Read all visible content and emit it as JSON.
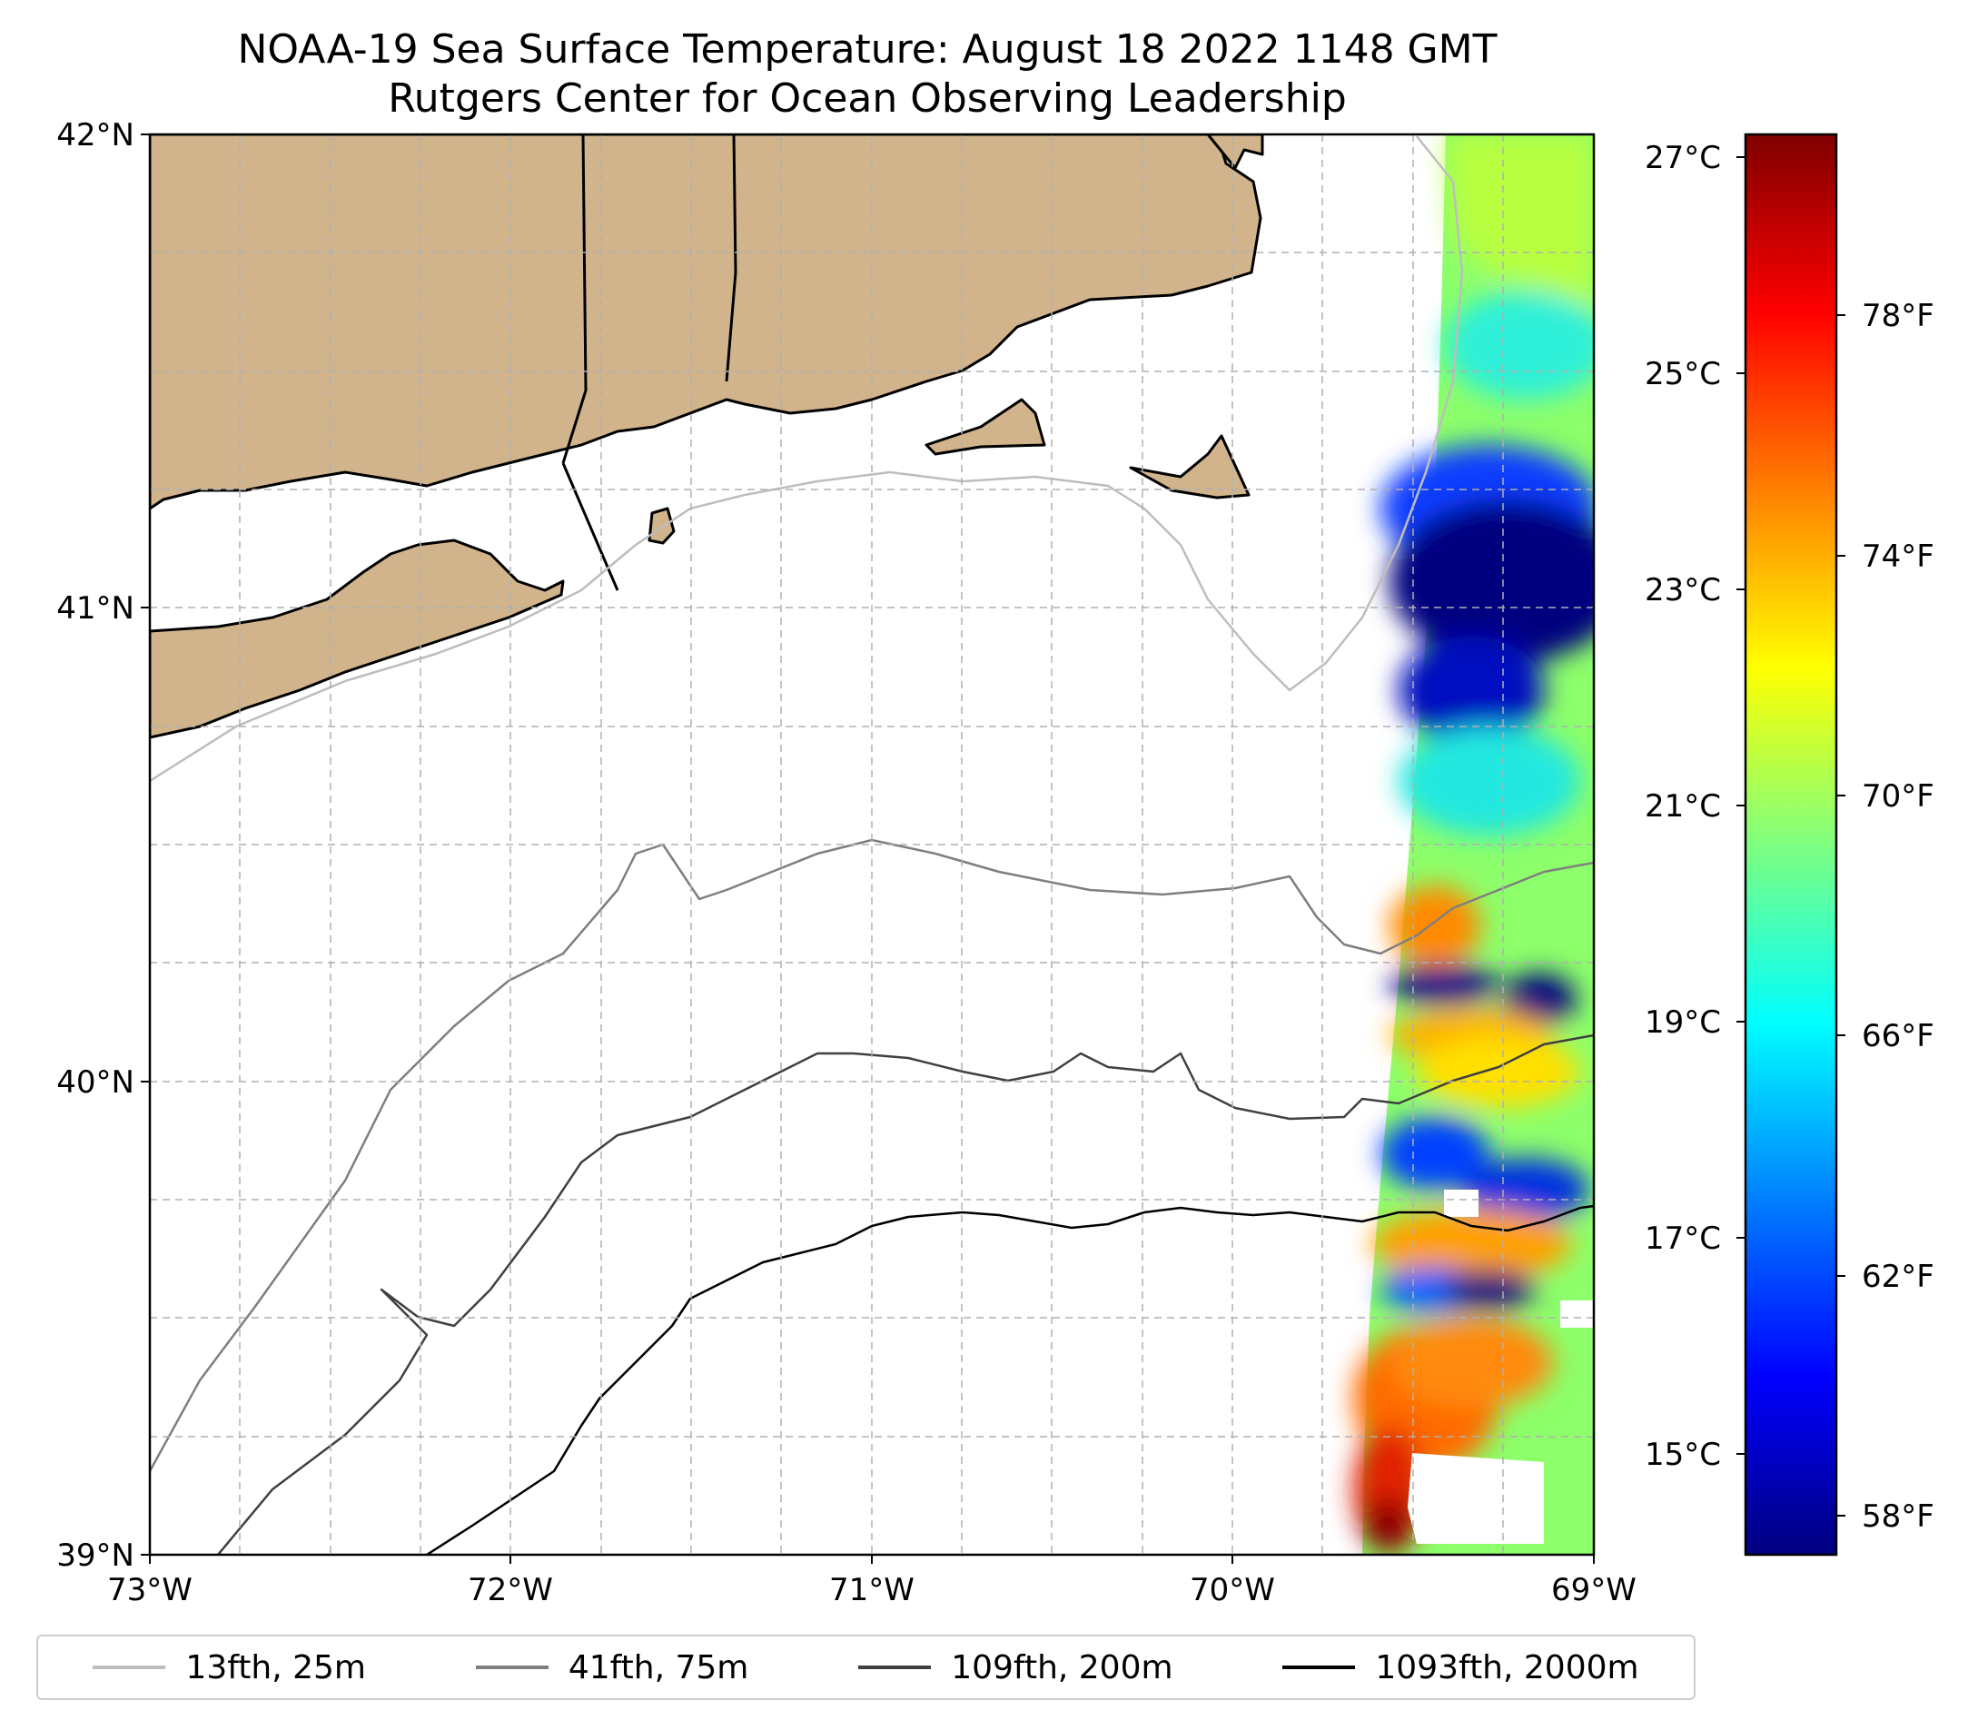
{
  "title": {
    "line1": "NOAA-19 Sea Surface Temperature: August 18 2022 1148 GMT",
    "line2": "Rutgers Center for Ocean Observing Leadership"
  },
  "map": {
    "lat_ticks": [
      "42°N",
      "41°N",
      "40°N",
      "39°N"
    ],
    "lon_ticks": [
      "73°W",
      "72°W",
      "71°W",
      "70°W",
      "69°W"
    ],
    "land_color": "#d2b48c",
    "grid": true
  },
  "colorbar": {
    "celsius_ticks": [
      "27°C",
      "25°C",
      "23°C",
      "21°C",
      "19°C",
      "17°C",
      "15°C"
    ],
    "fahrenheit_ticks": [
      "78°F",
      "74°F",
      "70°F",
      "66°F",
      "62°F",
      "58°F"
    ],
    "colormap": [
      "#00007f",
      "#0000ff",
      "#007fff",
      "#00ffff",
      "#7fff7f",
      "#ffff00",
      "#ff7f00",
      "#ff0000",
      "#7f0000"
    ]
  },
  "legend": {
    "items": [
      {
        "label": "13fth, 25m",
        "color": "#bdbdbd"
      },
      {
        "label": "41fth, 75m",
        "color": "#7f7f7f"
      },
      {
        "label": "109fth, 200m",
        "color": "#404040"
      },
      {
        "label": "1093fth, 2000m",
        "color": "#000000"
      }
    ]
  }
}
